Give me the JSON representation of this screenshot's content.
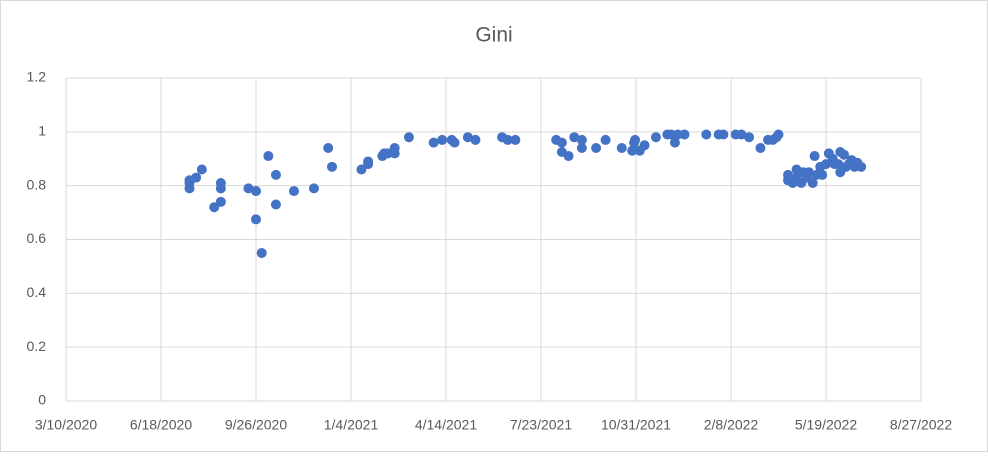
{
  "chart_data": {
    "type": "scatter",
    "title": "Gini",
    "color": "#4472c4",
    "grid": true,
    "xlim": [
      "2020-03-10",
      "2022-08-27"
    ],
    "xticks": [
      {
        "value": "2020-03-10",
        "label": "3/10/2020"
      },
      {
        "value": "2020-06-18",
        "label": "6/18/2020"
      },
      {
        "value": "2020-09-26",
        "label": "9/26/2020"
      },
      {
        "value": "2021-01-04",
        "label": "1/4/2021"
      },
      {
        "value": "2021-04-14",
        "label": "4/14/2021"
      },
      {
        "value": "2021-07-23",
        "label": "7/23/2021"
      },
      {
        "value": "2021-10-31",
        "label": "10/31/2021"
      },
      {
        "value": "2022-02-08",
        "label": "2/8/2022"
      },
      {
        "value": "2022-05-19",
        "label": "5/19/2022"
      },
      {
        "value": "2022-08-27",
        "label": "8/27/2022"
      }
    ],
    "ylim": [
      0,
      1.2
    ],
    "yticks": [
      0,
      0.2,
      0.4,
      0.6,
      0.8,
      1,
      1.2
    ],
    "x": [
      "2020-07-18",
      "2020-07-18",
      "2020-07-18",
      "2020-07-25",
      "2020-07-31",
      "2020-08-13",
      "2020-08-20",
      "2020-08-20",
      "2020-08-20",
      "2020-09-18",
      "2020-09-26",
      "2020-09-26",
      "2020-10-02",
      "2020-10-09",
      "2020-10-17",
      "2020-10-17",
      "2020-11-05",
      "2020-11-26",
      "2020-12-11",
      "2020-12-15",
      "2021-01-15",
      "2021-01-22",
      "2021-01-22",
      "2021-02-06",
      "2021-02-08",
      "2021-02-12",
      "2021-02-19",
      "2021-02-19",
      "2021-03-06",
      "2021-04-01",
      "2021-04-10",
      "2021-04-20",
      "2021-04-23",
      "2021-05-07",
      "2021-05-15",
      "2021-06-12",
      "2021-06-18",
      "2021-06-26",
      "2021-08-08",
      "2021-08-14",
      "2021-08-14",
      "2021-08-21",
      "2021-08-27",
      "2021-09-04",
      "2021-09-04",
      "2021-09-19",
      "2021-09-29",
      "2021-10-16",
      "2021-10-27",
      "2021-10-29",
      "2021-10-30",
      "2021-11-04",
      "2021-11-09",
      "2021-11-21",
      "2021-12-03",
      "2021-12-07",
      "2021-12-11",
      "2021-12-14",
      "2021-12-21",
      "2022-01-13",
      "2022-01-26",
      "2022-01-31",
      "2022-02-13",
      "2022-02-19",
      "2022-02-27",
      "2022-03-11",
      "2022-03-19",
      "2022-03-24",
      "2022-03-28",
      "2022-03-30",
      "2022-04-09",
      "2022-04-09",
      "2022-04-14",
      "2022-04-18",
      "2022-04-18",
      "2022-04-23",
      "2022-04-25",
      "2022-04-29",
      "2022-05-01",
      "2022-05-05",
      "2022-05-07",
      "2022-05-09",
      "2022-05-13",
      "2022-05-15",
      "2022-05-19",
      "2022-05-22",
      "2022-05-26",
      "2022-05-28",
      "2022-06-01",
      "2022-06-03",
      "2022-06-03",
      "2022-06-07",
      "2022-06-09",
      "2022-06-12",
      "2022-06-15",
      "2022-06-18",
      "2022-06-21",
      "2022-06-25"
    ],
    "values": [
      0.81,
      0.79,
      0.82,
      0.83,
      0.86,
      0.72,
      0.81,
      0.79,
      0.74,
      0.79,
      0.78,
      0.675,
      0.55,
      0.91,
      0.84,
      0.73,
      0.78,
      0.79,
      0.94,
      0.87,
      0.86,
      0.89,
      0.88,
      0.91,
      0.92,
      0.92,
      0.94,
      0.92,
      0.98,
      0.96,
      0.97,
      0.97,
      0.96,
      0.98,
      0.97,
      0.98,
      0.97,
      0.97,
      0.97,
      0.96,
      0.925,
      0.91,
      0.98,
      0.97,
      0.94,
      0.94,
      0.97,
      0.94,
      0.93,
      0.96,
      0.97,
      0.93,
      0.95,
      0.98,
      0.99,
      0.99,
      0.96,
      0.99,
      0.99,
      0.99,
      0.99,
      0.99,
      0.99,
      0.99,
      0.98,
      0.94,
      0.97,
      0.97,
      0.98,
      0.99,
      0.84,
      0.82,
      0.81,
      0.86,
      0.83,
      0.81,
      0.85,
      0.83,
      0.85,
      0.81,
      0.91,
      0.84,
      0.87,
      0.84,
      0.88,
      0.92,
      0.9,
      0.88,
      0.88,
      0.925,
      0.85,
      0.915,
      0.87,
      0.88,
      0.895,
      0.87,
      0.885,
      0.87
    ]
  }
}
